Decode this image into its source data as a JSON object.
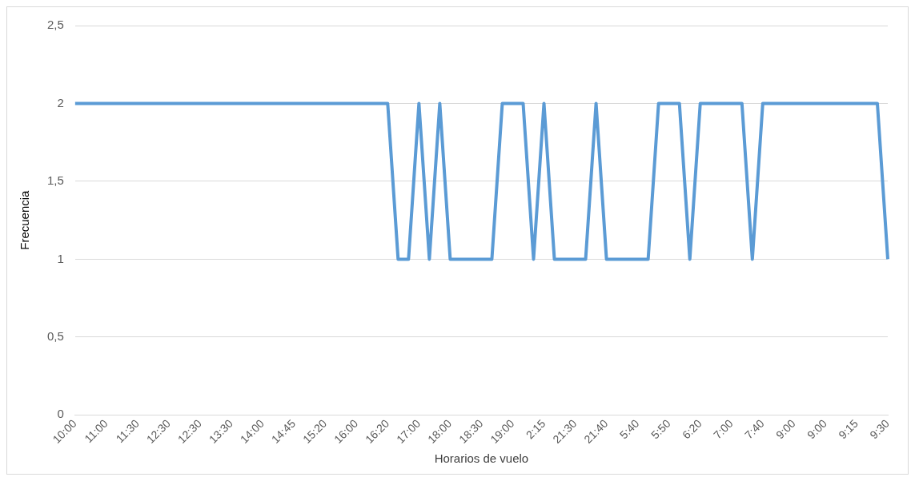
{
  "chart_data": {
    "type": "line",
    "xlabel": "Horarios de vuelo",
    "ylabel": "Frecuencia",
    "categories": [
      "10:00",
      null,
      null,
      "11:00",
      null,
      null,
      "11:30",
      null,
      null,
      "12:30",
      null,
      null,
      "12:30",
      null,
      null,
      "13:30",
      null,
      null,
      "14:00",
      null,
      null,
      "14:45",
      null,
      null,
      "15:20",
      null,
      null,
      "16:00",
      null,
      null,
      "16:20",
      null,
      null,
      "17:00",
      null,
      null,
      "18:00",
      null,
      null,
      "18:30",
      null,
      null,
      "19:00",
      null,
      null,
      "2:15",
      null,
      null,
      "21:30",
      null,
      null,
      "21:40",
      null,
      null,
      "5:40",
      null,
      null,
      "5:50",
      null,
      null,
      "6:20",
      null,
      null,
      "7:00",
      null,
      null,
      "7:40",
      null,
      null,
      "9:00",
      null,
      null,
      "9:00",
      null,
      null,
      "9:15",
      null,
      null,
      "9:30"
    ],
    "series": [
      {
        "color": "#5b9bd5",
        "values": [
          2,
          2,
          2,
          2,
          2,
          2,
          2,
          2,
          2,
          2,
          2,
          2,
          2,
          2,
          2,
          2,
          2,
          2,
          2,
          2,
          2,
          2,
          2,
          2,
          2,
          2,
          2,
          2,
          2,
          2,
          2,
          1,
          1,
          2,
          1,
          2,
          1,
          1,
          1,
          1,
          1,
          2,
          2,
          2,
          1,
          2,
          1,
          1,
          1,
          1,
          2,
          1,
          1,
          1,
          1,
          1,
          2,
          2,
          2,
          1,
          2,
          2,
          2,
          2,
          2,
          1,
          2,
          2,
          2,
          2,
          2,
          2,
          2,
          2,
          2,
          2,
          2,
          2,
          1
        ]
      }
    ],
    "ylim": [
      0,
      2.5
    ],
    "yticks": [
      0,
      {
        "value": 0.5,
        "label": "0,5"
      },
      1,
      {
        "value": 1.5,
        "label": "1,5"
      },
      2,
      {
        "value": 2.5,
        "label": "2,5"
      }
    ],
    "grid": "y",
    "legend": false,
    "marker": "none",
    "line_style": "solid"
  }
}
